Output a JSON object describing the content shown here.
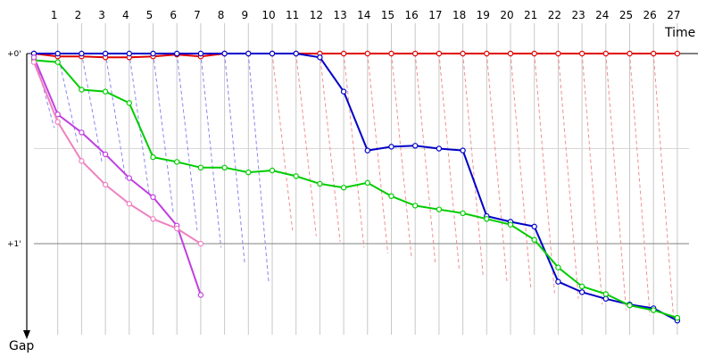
{
  "chart_data": {
    "type": "line",
    "xlabel": "Time",
    "ylabel": "Gap",
    "x_ticks": [
      1,
      2,
      3,
      4,
      5,
      6,
      7,
      8,
      9,
      10,
      11,
      12,
      13,
      14,
      15,
      16,
      17,
      18,
      19,
      20,
      21,
      22,
      23,
      24,
      25,
      26,
      27
    ],
    "y_tick_labels": [
      "+0'",
      "+1'"
    ],
    "y_tick_values": [
      0,
      1
    ],
    "xlim": [
      0,
      27.9
    ],
    "ylim": [
      0,
      1.42
    ],
    "grid": true,
    "colors": {
      "red": "#e00000",
      "blue": "#0000c8",
      "green": "#00cc00",
      "purple": "#c040e0",
      "pink": "#f080c0",
      "guide_blue": "#8888ee",
      "guide_red": "#f09090",
      "vgrid": "#c8c8c8",
      "hgrid": "#c0c0c0"
    },
    "series": [
      {
        "color": "red",
        "x": [
          0,
          1,
          2,
          3,
          4,
          5,
          6,
          7,
          8,
          9,
          10,
          11,
          12,
          13,
          14,
          15,
          16,
          17,
          18,
          19,
          20,
          21,
          22,
          23,
          24,
          25,
          26,
          27,
          27.9
        ],
        "y": [
          0,
          0.015,
          0.015,
          0.02,
          0.02,
          0.015,
          0.005,
          0.015,
          0,
          0,
          0,
          0,
          0,
          0,
          0,
          0,
          0,
          0,
          0,
          0,
          0,
          0,
          0,
          0,
          0,
          0,
          0,
          0,
          0
        ]
      },
      {
        "color": "blue",
        "x": [
          0,
          1,
          2,
          3,
          4,
          5,
          6,
          7,
          8,
          9,
          10,
          11,
          12,
          13,
          14,
          15,
          16,
          17,
          18,
          19,
          20,
          21,
          22,
          23,
          24,
          25,
          26,
          27,
          27.9
        ],
        "y": [
          0,
          0,
          0,
          0,
          0,
          0,
          0,
          0,
          0,
          0,
          0,
          0,
          0.02,
          0.2,
          0.51,
          0.49,
          0.485,
          0.5,
          0.51,
          0.855,
          0.885,
          0.91,
          1.2,
          1.255,
          1.29,
          1.32,
          1.34,
          1.405,
          0
        ]
      },
      {
        "color": "green",
        "x": [
          0,
          1,
          2,
          3,
          4,
          5,
          6,
          7,
          8,
          9,
          10,
          11,
          12,
          13,
          14,
          15,
          16,
          17,
          18,
          19,
          20,
          21,
          22,
          23,
          24,
          25,
          26,
          27,
          27.9
        ],
        "y": [
          0.035,
          0.045,
          0.19,
          0.2,
          0.26,
          0.545,
          0.57,
          0.6,
          0.6,
          0.625,
          0.615,
          0.645,
          0.685,
          0.705,
          0.68,
          0.75,
          0.8,
          0.82,
          0.84,
          0.87,
          0.9,
          0.98,
          1.125,
          1.225,
          1.265,
          1.325,
          1.35,
          1.39,
          0
        ]
      },
      {
        "color": "purple",
        "x": [
          0,
          1,
          2,
          3,
          4,
          5,
          6,
          7,
          7.9
        ],
        "y": [
          0.02,
          0.32,
          0.415,
          0.53,
          0.655,
          0.755,
          0.905,
          1.27,
          0
        ]
      },
      {
        "color": "pink",
        "x": [
          0,
          1,
          2,
          3,
          4,
          5,
          6,
          7,
          7.9
        ],
        "y": [
          0.045,
          0.36,
          0.565,
          0.69,
          0.79,
          0.87,
          0.92,
          1.0,
          0
        ]
      }
    ]
  }
}
